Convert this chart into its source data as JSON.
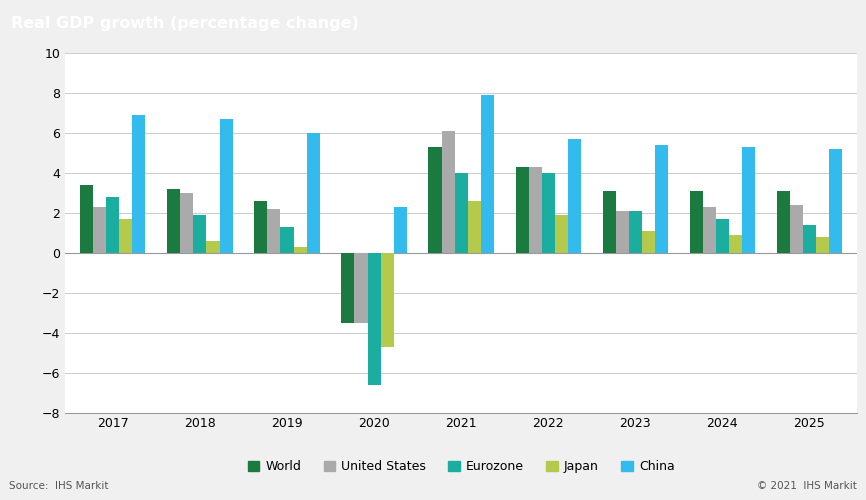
{
  "title": "Real GDP growth (percentage change)",
  "years": [
    2017,
    2018,
    2019,
    2020,
    2021,
    2022,
    2023,
    2024,
    2025
  ],
  "series": {
    "World": [
      3.4,
      3.2,
      2.6,
      -3.5,
      5.3,
      4.3,
      3.1,
      3.1,
      3.1
    ],
    "United States": [
      2.3,
      3.0,
      2.2,
      -3.5,
      6.1,
      4.3,
      2.1,
      2.3,
      2.4
    ],
    "Eurozone": [
      2.8,
      1.9,
      1.3,
      -6.6,
      4.0,
      4.0,
      2.1,
      1.7,
      1.4
    ],
    "Japan": [
      1.7,
      0.6,
      0.3,
      -4.7,
      2.6,
      1.9,
      1.1,
      0.9,
      0.8
    ],
    "China": [
      6.9,
      6.7,
      6.0,
      2.3,
      7.9,
      5.7,
      5.4,
      5.3,
      5.2
    ]
  },
  "colors": {
    "World": "#1a7a40",
    "United States": "#aaaaaa",
    "Eurozone": "#1aada0",
    "Japan": "#b5c94c",
    "China": "#33bbee"
  },
  "ylim": [
    -8,
    10
  ],
  "yticks": [
    -8,
    -6,
    -4,
    -2,
    0,
    2,
    4,
    6,
    8,
    10
  ],
  "bar_width": 0.15,
  "title_bg_color": "#737373",
  "title_text_color": "#ffffff",
  "fig_bg_color": "#f0f0f0",
  "chart_bg_color": "#ffffff",
  "source_text": "Source:  IHS Markit",
  "copyright_text": "© 2021  IHS Markit",
  "legend_order": [
    "World",
    "United States",
    "Eurozone",
    "Japan",
    "China"
  ]
}
